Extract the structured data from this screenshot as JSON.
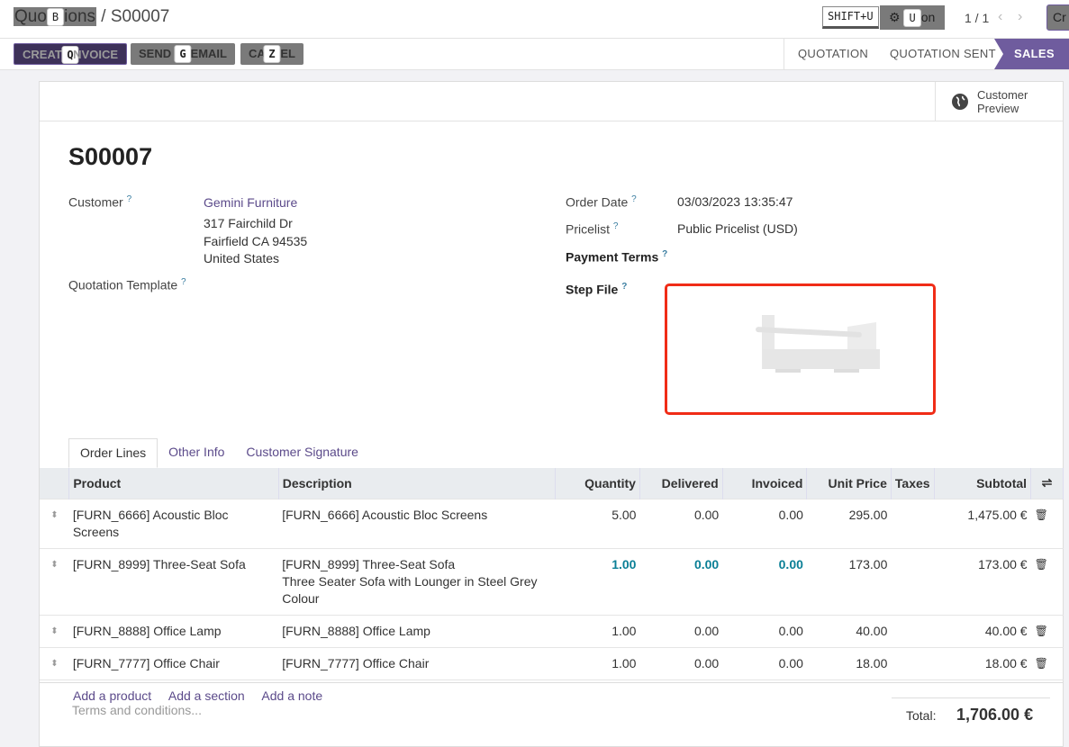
{
  "breadcrumb": {
    "parent": "Quotations",
    "parent_visible_start": "Quo",
    "parent_visible_end": "ions",
    "parent_hotkey": "B",
    "separator": "/",
    "current": "S00007"
  },
  "topbar": {
    "shortcut_hint": "SHIFT+U",
    "action_label": "Action",
    "action_visible_end": "on",
    "action_hotkey": "U",
    "pager": "1 / 1",
    "create_partial": "Cr"
  },
  "actions": [
    {
      "label": "CREATE INVOICE",
      "pre": "CREAT",
      "post": "NVOICE",
      "hotkey": "Q"
    },
    {
      "label": "SEND BY EMAIL",
      "pre": "SEND",
      "post": "EMAIL",
      "hotkey": "G"
    },
    {
      "label": "CANCEL",
      "pre": "CA",
      "post": "EL",
      "hotkey": "Z"
    }
  ],
  "statusbar": {
    "steps": [
      "QUOTATION",
      "QUOTATION SENT",
      "SALES ORDER"
    ],
    "active": "SALES ORDER",
    "active_visible": "SALES ORI",
    "active_color": "#6f5c9e"
  },
  "customer_preview": {
    "line1": "Customer",
    "line2": "Preview",
    "icon": "globe-icon"
  },
  "record": {
    "name": "S00007",
    "customer_label": "Customer",
    "customer": "Gemini Furniture",
    "address": [
      "317 Fairchild Dr",
      "Fairfield CA 94535",
      "United States"
    ],
    "quotation_template_label": "Quotation Template",
    "order_date_label": "Order Date",
    "order_date": "03/03/2023 13:35:47",
    "pricelist_label": "Pricelist",
    "pricelist": "Public Pricelist (USD)",
    "payment_terms_label": "Payment Terms",
    "step_file_label": "Step File",
    "help": "?"
  },
  "tabs": [
    "Order Lines",
    "Other Info",
    "Customer Signature"
  ],
  "table": {
    "headers": [
      "Product",
      "Description",
      "Quantity",
      "Delivered",
      "Invoiced",
      "Unit Price",
      "Taxes",
      "Subtotal"
    ],
    "rows": [
      {
        "product": "[FURN_6666] Acoustic Bloc Screens",
        "description": [
          "[FURN_6666] Acoustic Bloc Screens"
        ],
        "quantity": "5.00",
        "delivered": "0.00",
        "invoiced": "0.00",
        "unit_price": "295.00",
        "taxes": "",
        "subtotal": "1,475.00 €"
      },
      {
        "product": "[FURN_8999] Three-Seat Sofa",
        "description": [
          "[FURN_8999] Three-Seat Sofa",
          "Three Seater Sofa with Lounger in Steel Grey",
          "Colour"
        ],
        "quantity": "1.00",
        "delivered": "0.00",
        "invoiced": "0.00",
        "unit_price": "173.00",
        "taxes": "",
        "subtotal": "173.00 €"
      },
      {
        "product": "[FURN_8888] Office Lamp",
        "description": [
          "[FURN_8888] Office Lamp"
        ],
        "quantity": "1.00",
        "delivered": "0.00",
        "invoiced": "0.00",
        "unit_price": "40.00",
        "taxes": "",
        "subtotal": "40.00 €"
      },
      {
        "product": "[FURN_7777] Office Chair",
        "description": [
          "[FURN_7777] Office Chair"
        ],
        "quantity": "1.00",
        "delivered": "0.00",
        "invoiced": "0.00",
        "unit_price": "18.00",
        "taxes": "",
        "subtotal": "18.00 €"
      }
    ],
    "add_links": [
      "Add a product",
      "Add a section",
      "Add a note"
    ]
  },
  "footer": {
    "terms_placeholder": "Terms and conditions...",
    "total_label": "Total:",
    "total": "1,706.00 €"
  }
}
